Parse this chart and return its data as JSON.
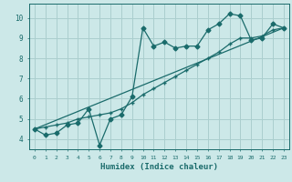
{
  "xlabel": "Humidex (Indice chaleur)",
  "bg_color": "#cce8e8",
  "grid_color": "#aacece",
  "line_color": "#1a6b6b",
  "xlim": [
    -0.5,
    23.5
  ],
  "ylim": [
    3.5,
    10.7
  ],
  "xticks": [
    0,
    1,
    2,
    3,
    4,
    5,
    6,
    7,
    8,
    9,
    10,
    11,
    12,
    13,
    14,
    15,
    16,
    17,
    18,
    19,
    20,
    21,
    22,
    23
  ],
  "yticks": [
    4,
    5,
    6,
    7,
    8,
    9,
    10
  ],
  "series1_x": [
    0,
    1,
    2,
    3,
    4,
    5,
    6,
    7,
    8,
    9,
    10,
    11,
    12,
    13,
    14,
    15,
    16,
    17,
    18,
    19,
    20,
    21,
    22,
    23
  ],
  "series1_y": [
    4.5,
    4.2,
    4.3,
    4.7,
    4.8,
    5.5,
    3.7,
    5.0,
    5.2,
    6.1,
    9.5,
    8.6,
    8.8,
    8.5,
    8.6,
    8.6,
    9.4,
    9.7,
    10.2,
    10.1,
    8.9,
    9.0,
    9.7,
    9.5
  ],
  "series2_x": [
    0,
    1,
    2,
    3,
    4,
    5,
    6,
    7,
    8,
    9,
    10,
    11,
    12,
    13,
    14,
    15,
    16,
    17,
    18,
    19,
    20,
    21,
    22,
    23
  ],
  "series2_y": [
    4.5,
    4.6,
    4.7,
    4.8,
    5.0,
    5.1,
    5.2,
    5.3,
    5.5,
    5.8,
    6.2,
    6.5,
    6.8,
    7.1,
    7.4,
    7.7,
    8.0,
    8.3,
    8.7,
    9.0,
    9.0,
    9.1,
    9.4,
    9.5
  ],
  "series3_x": [
    0,
    23
  ],
  "series3_y": [
    4.5,
    9.5
  ]
}
